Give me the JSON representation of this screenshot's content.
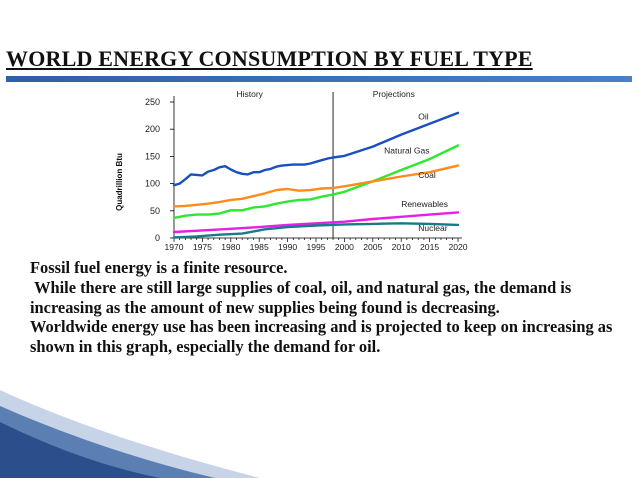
{
  "slide": {
    "title": "WORLD ENERGY CONSUMPTION BY FUEL TYPE",
    "paragraphs": [
      "Fossil fuel energy is a finite resource.",
      " While there are still large supplies of coal, oil, and natural gas, the demand is increasing as the amount of new supplies being found is decreasing.",
      "Worldwide energy use has been increasing and is projected to keep on increasing as shown in this graph, especially the demand for oil."
    ],
    "accent_color": "#2f5fa6"
  },
  "chart_data": {
    "type": "line",
    "ylabel": "Quadrillion Btu",
    "xlabel": "",
    "ylim": [
      0,
      250
    ],
    "xlim": [
      1970,
      2020
    ],
    "yticks": [
      0,
      50,
      100,
      150,
      200,
      250
    ],
    "xticks": [
      1970,
      1975,
      1980,
      1985,
      1990,
      1995,
      2000,
      2005,
      2010,
      2015,
      2020
    ],
    "annotations": {
      "history": "History",
      "projections": "Projections",
      "divider_year": 1998
    },
    "grid": false,
    "series": [
      {
        "name": "Oil",
        "color": "#1a4fc0",
        "x": [
          1970,
          1971,
          1972,
          1973,
          1974,
          1975,
          1976,
          1977,
          1978,
          1979,
          1980,
          1981,
          1982,
          1983,
          1984,
          1985,
          1986,
          1987,
          1988,
          1989,
          1990,
          1991,
          1992,
          1993,
          1994,
          1995,
          1996,
          1997,
          1998,
          2000,
          2005,
          2010,
          2015,
          2020
        ],
        "y": [
          97,
          100,
          108,
          117,
          116,
          115,
          122,
          125,
          130,
          132,
          126,
          121,
          118,
          117,
          121,
          121,
          125,
          127,
          131,
          133,
          134,
          135,
          135,
          135,
          137,
          140,
          143,
          146,
          148,
          151,
          168,
          190,
          210,
          230
        ]
      },
      {
        "name": "Natural Gas",
        "color": "#2ee82e",
        "x": [
          1970,
          1972,
          1974,
          1976,
          1978,
          1980,
          1982,
          1984,
          1986,
          1988,
          1990,
          1992,
          1994,
          1996,
          1998,
          2000,
          2005,
          2010,
          2015,
          2020
        ],
        "y": [
          37,
          41,
          43,
          43,
          45,
          51,
          51,
          56,
          58,
          63,
          67,
          70,
          71,
          76,
          80,
          85,
          104,
          125,
          145,
          170
        ]
      },
      {
        "name": "Coal",
        "color": "#ff8c1a",
        "x": [
          1970,
          1972,
          1974,
          1976,
          1978,
          1980,
          1982,
          1984,
          1986,
          1988,
          1990,
          1992,
          1994,
          1996,
          1998,
          2000,
          2005,
          2010,
          2015,
          2020
        ],
        "y": [
          58,
          59,
          61,
          63,
          66,
          70,
          72,
          77,
          82,
          88,
          90,
          87,
          88,
          91,
          92,
          95,
          104,
          113,
          121,
          133
        ]
      },
      {
        "name": "Renewables",
        "color": "#e61ee6",
        "x": [
          1970,
          1975,
          1980,
          1985,
          1990,
          1995,
          2000,
          2005,
          2010,
          2015,
          2020
        ],
        "y": [
          11,
          14,
          17,
          20,
          24,
          27,
          30,
          35,
          39,
          43,
          47
        ]
      },
      {
        "name": "Nuclear",
        "color": "#157a8a",
        "x": [
          1970,
          1974,
          1978,
          1982,
          1986,
          1990,
          1995,
          2000,
          2005,
          2010,
          2015,
          2020
        ],
        "y": [
          1,
          3,
          6,
          8,
          16,
          20,
          23,
          25,
          26,
          27,
          26,
          24
        ]
      }
    ],
    "labels": {
      "Oil": {
        "x": 2013,
        "y": 218
      },
      "Natural Gas": {
        "x": 2007,
        "y": 155
      },
      "Coal": {
        "x": 2013,
        "y": 110
      },
      "Renewables": {
        "x": 2010,
        "y": 57
      },
      "Nuclear": {
        "x": 2013,
        "y": 13
      }
    }
  }
}
